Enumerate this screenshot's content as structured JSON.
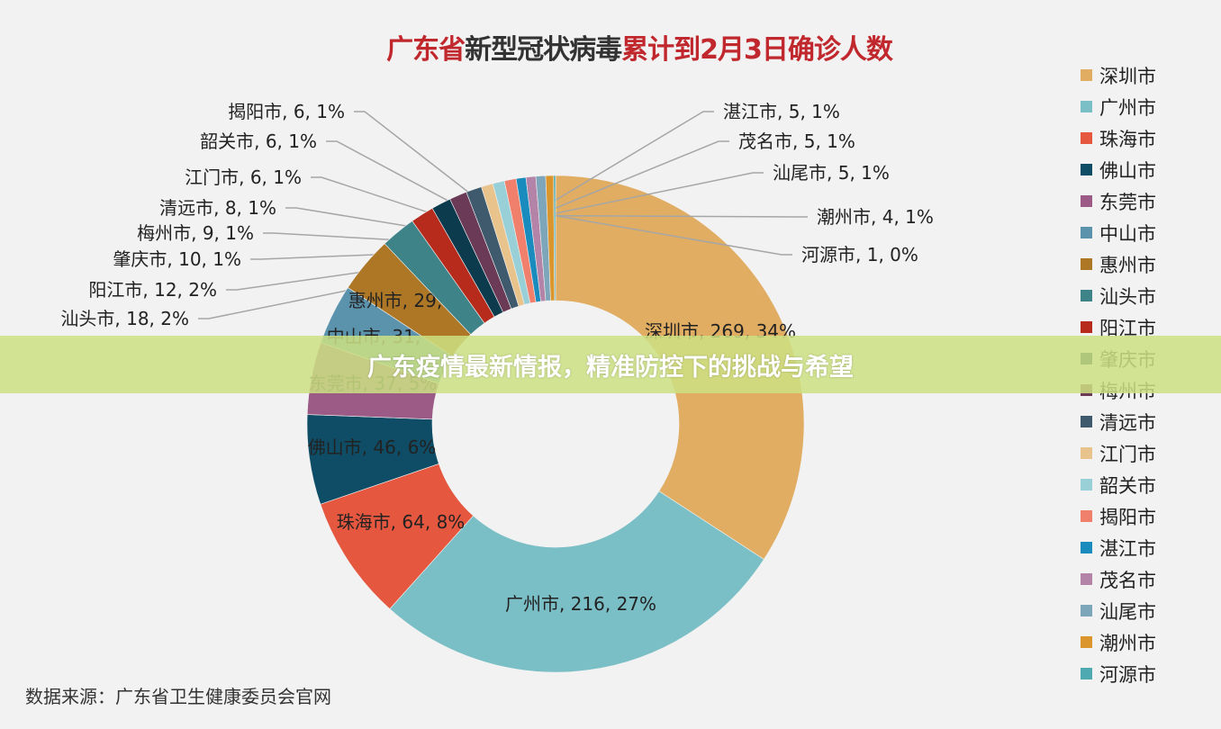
{
  "chart_data": {
    "type": "pie",
    "donut": true,
    "title_parts": [
      {
        "text": "广东省",
        "color": "#c0282d"
      },
      {
        "text": "新型冠状病毒",
        "color": "#333333"
      },
      {
        "text": "累计到2月3日确诊人数",
        "color": "#c0282d"
      }
    ],
    "legend_position": "right",
    "slices": [
      {
        "name": "深圳市",
        "value": 269,
        "percent": "34%",
        "color": "#e0ad62"
      },
      {
        "name": "广州市",
        "value": 216,
        "percent": "27%",
        "color": "#7bbfc6"
      },
      {
        "name": "珠海市",
        "value": 64,
        "percent": "8%",
        "color": "#e5573f"
      },
      {
        "name": "佛山市",
        "value": 46,
        "percent": "6%",
        "color": "#0f4d66"
      },
      {
        "name": "东莞市",
        "value": 37,
        "percent": "5%",
        "color": "#9b5b86"
      },
      {
        "name": "中山市",
        "value": 31,
        "percent": "4%",
        "color": "#5b93ad"
      },
      {
        "name": "惠州市",
        "value": 29,
        "percent": "4%",
        "color": "#ae7726"
      },
      {
        "name": "汕头市",
        "value": 18,
        "percent": "2%",
        "color": "#3d8388"
      },
      {
        "name": "阳江市",
        "value": 12,
        "percent": "2%",
        "color": "#b62b1c"
      },
      {
        "name": "肇庆市",
        "value": 10,
        "percent": "1%",
        "color": "#0c3b4e"
      },
      {
        "name": "梅州市",
        "value": 9,
        "percent": "1%",
        "color": "#6a3a57"
      },
      {
        "name": "清远市",
        "value": 8,
        "percent": "1%",
        "color": "#3e5a6c"
      },
      {
        "name": "江门市",
        "value": 6,
        "percent": "1%",
        "color": "#e8c48c"
      },
      {
        "name": "韶关市",
        "value": 6,
        "percent": "1%",
        "color": "#99cfd6"
      },
      {
        "name": "揭阳市",
        "value": 6,
        "percent": "1%",
        "color": "#f07f6b"
      },
      {
        "name": "湛江市",
        "value": 5,
        "percent": "1%",
        "color": "#1a8bbd"
      },
      {
        "name": "茂名市",
        "value": 5,
        "percent": "1%",
        "color": "#b383a8"
      },
      {
        "name": "汕尾市",
        "value": 5,
        "percent": "1%",
        "color": "#7ea6ba"
      },
      {
        "name": "潮州市",
        "value": 4,
        "percent": "1%",
        "color": "#da962c"
      },
      {
        "name": "河源市",
        "value": 1,
        "percent": "0%",
        "color": "#4fa9b0"
      }
    ]
  },
  "source": "数据来源：广东省卫生健康委员会官网",
  "banner": "广东疫情最新情报，精准防控下的挑战与希望"
}
